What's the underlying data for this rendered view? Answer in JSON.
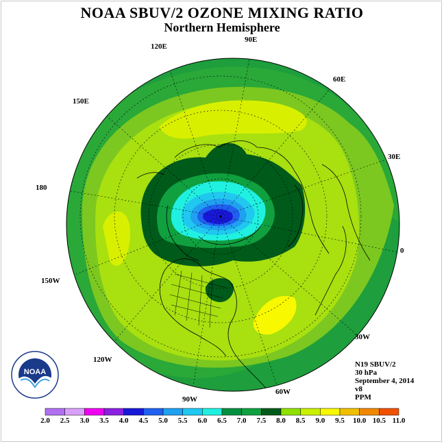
{
  "title": "NOAA SBUV/2 OZONE MIXING RATIO",
  "subtitle": "Northern Hemisphere",
  "longitude_labels": [
    "90E",
    "60E",
    "30E",
    "0",
    "30W",
    "60W",
    "90W",
    "120W",
    "150W",
    "180",
    "150E",
    "120E"
  ],
  "info": {
    "instrument": "N19 SBUV/2",
    "pressure": "30 hPa",
    "date": "September 4, 2014",
    "version": "v8",
    "units": "PPM"
  },
  "legend": {
    "ticks": [
      "2.0",
      "2.5",
      "3.0",
      "3.5",
      "4.0",
      "4.5",
      "5.0",
      "5.5",
      "6.0",
      "6.5",
      "7.0",
      "7.5",
      "8.0",
      "8.5",
      "9.0",
      "9.5",
      "10.0",
      "10.5",
      "11.0"
    ],
    "colors": [
      "#b070f0",
      "#d8a0f8",
      "#f000f0",
      "#8a20e0",
      "#1818d8",
      "#2060f0",
      "#20a0f0",
      "#20c8f0",
      "#20f0e0",
      "#009040",
      "#10a040",
      "#005a1a",
      "#90e000",
      "#c8f000",
      "#f8f800",
      "#f0c000",
      "#f08800",
      "#f05000",
      "#e80000",
      "#8a5030"
    ]
  },
  "colors": {
    "outer_ring": "#1e9e3c",
    "dark_ring": "#005a1a",
    "mid_green": "#7cc820",
    "light_green": "#a8e010",
    "yellow_green": "#d8f000",
    "yellow": "#f8f800",
    "cyan": "#20f0e0",
    "blue": "#1818d8",
    "coast": "#000000"
  }
}
